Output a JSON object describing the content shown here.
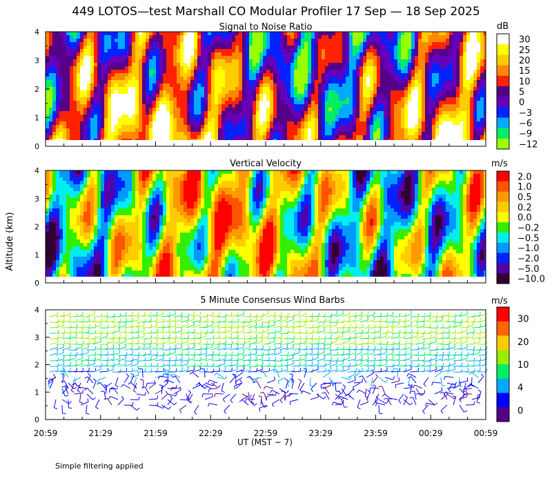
{
  "page": {
    "title": "449 LOTOS—test Marshall CO Modular Profiler 17 Sep — 18 Sep 2025",
    "ylabel": "Altitude (km)",
    "xlabel": "UT  (MST − 7)",
    "footnote": "Simple filtering applied"
  },
  "chart_data": [
    {
      "type": "heatmap",
      "title": "Signal to Noise Ratio",
      "y_ticks": [
        "0",
        "1",
        "2",
        "3",
        "4"
      ],
      "ylim": [
        0,
        4
      ],
      "colorbar_unit": "dB",
      "colorbar_levels": [
        "30",
        "25",
        "20",
        "15",
        "10",
        "5",
        "0",
        "−3",
        "−6",
        "−9",
        "−12"
      ],
      "colorbar_colors": [
        "#ffffff",
        "#ffff00",
        "#ffcc00",
        "#ff8800",
        "#ff2200",
        "#550088",
        "#6600bb",
        "#0022ff",
        "#00aaff",
        "#00ee66",
        "#99ff00"
      ]
    },
    {
      "type": "heatmap",
      "title": "Vertical Velocity",
      "y_ticks": [
        "0",
        "1",
        "2",
        "3",
        "4"
      ],
      "ylim": [
        0,
        4
      ],
      "colorbar_unit": "m/s",
      "colorbar_levels": [
        "2.0",
        "1.0",
        "0.5",
        "0.2",
        "0.0",
        "−0.2",
        "−0.5",
        "−1.0",
        "−2.0",
        "−5.0",
        "−10.0"
      ],
      "colorbar_colors": [
        "#ff0000",
        "#ff5500",
        "#ff9900",
        "#ffcc00",
        "#ffff00",
        "#33ee00",
        "#00eeee",
        "#0099ff",
        "#0022ff",
        "#5500aa",
        "#330033"
      ]
    },
    {
      "type": "scatter",
      "title": "5 Minute Consensus Wind Barbs",
      "y_ticks": [
        "0",
        "1",
        "2",
        "3",
        "4"
      ],
      "ylim": [
        0,
        4
      ],
      "colorbar_unit": "m/s",
      "colorbar_levels": [
        "30",
        "20",
        "10",
        "4",
        "0"
      ],
      "colorbar_colors": [
        "#ff0000",
        "#ff6600",
        "#ffcc00",
        "#99ee00",
        "#00ee66",
        "#00aaff",
        "#0000ff",
        "#550088"
      ]
    }
  ],
  "x_ticks": [
    "20:59",
    "21:29",
    "21:59",
    "22:29",
    "22:59",
    "23:29",
    "23:59",
    "00:29",
    "00:59"
  ],
  "colors": {
    "axis": "#000000",
    "background": "#ffffff"
  }
}
